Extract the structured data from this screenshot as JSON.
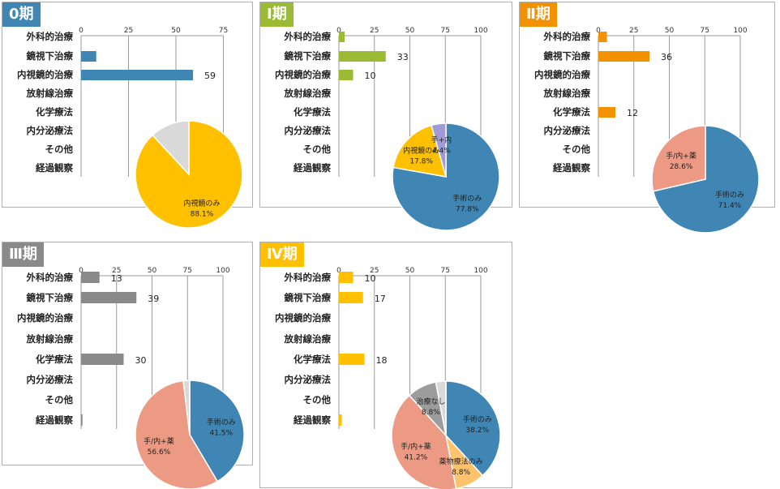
{
  "categories": [
    "外科的治療",
    "鏡視下治療",
    "内視鏡的治療",
    "放射線治療",
    "化学療法",
    "内分泌療法",
    "その他",
    "経過観察"
  ],
  "panels": [
    {
      "title": "0期",
      "color": "#3f86b5",
      "chart_data": {
        "type": "bar",
        "orientation": "horizontal",
        "ticks": [
          0,
          25,
          50,
          75
        ],
        "values": [
          0,
          8,
          59,
          0,
          0,
          0,
          0,
          0
        ],
        "labels": [
          "",
          "",
          "59",
          "",
          "",
          "",
          "",
          ""
        ],
        "pie": [
          {
            "name": "内視鏡のみ",
            "value": 88.1,
            "label": "内視鏡のみ",
            "pct": "88.1%",
            "color": "#ffc000"
          },
          {
            "name": "",
            "value": 11.9,
            "label": "",
            "pct": "",
            "color": "#d9d9d9"
          }
        ]
      }
    },
    {
      "title": "Ⅰ期",
      "color": "#9bbb34",
      "chart_data": {
        "type": "bar",
        "orientation": "horizontal",
        "ticks": [
          0,
          25,
          50,
          75,
          100
        ],
        "values": [
          4,
          33,
          10,
          0,
          0,
          0,
          0,
          0
        ],
        "labels": [
          "",
          "33",
          "10",
          "",
          "",
          "",
          "",
          ""
        ],
        "pie": [
          {
            "name": "手術のみ",
            "value": 77.8,
            "label": "手術のみ",
            "pct": "77.8%",
            "color": "#3f86b5"
          },
          {
            "name": "内視鏡のみ",
            "value": 17.8,
            "label": "内視鏡のみ",
            "pct": "17.8%",
            "color": "#ffc000"
          },
          {
            "name": "手+内",
            "value": 4.4,
            "label": "手+内",
            "pct": "4.4%",
            "color": "#a09ad6"
          }
        ]
      }
    },
    {
      "title": "Ⅱ期",
      "color": "#f39200",
      "chart_data": {
        "type": "bar",
        "orientation": "horizontal",
        "ticks": [
          0,
          25,
          50,
          75,
          100
        ],
        "values": [
          6,
          36,
          0,
          0,
          12,
          0,
          0,
          0
        ],
        "labels": [
          "",
          "36",
          "",
          "",
          "12",
          "",
          "",
          ""
        ],
        "pie": [
          {
            "name": "手術のみ",
            "value": 71.4,
            "label": "手術のみ",
            "pct": "71.4%",
            "color": "#3f86b5"
          },
          {
            "name": "手/内+薬",
            "value": 28.6,
            "label": "手/内+薬",
            "pct": "28.6%",
            "color": "#ec9a84"
          }
        ]
      }
    },
    {
      "title": "Ⅲ期",
      "color": "#8a8a8a",
      "chart_data": {
        "type": "bar",
        "orientation": "horizontal",
        "ticks": [
          0,
          25,
          50,
          75,
          100
        ],
        "values": [
          13,
          39,
          0,
          0,
          30,
          0,
          0,
          1
        ],
        "labels": [
          "13",
          "39",
          "",
          "",
          "30",
          "",
          "",
          ""
        ],
        "pie": [
          {
            "name": "手術のみ",
            "value": 41.5,
            "label": "手術のみ",
            "pct": "41.5%",
            "color": "#3f86b5"
          },
          {
            "name": "手/内+薬",
            "value": 56.6,
            "label": "手/内+薬",
            "pct": "56.6%",
            "color": "#ec9a84"
          },
          {
            "name": "",
            "value": 1.9,
            "label": "",
            "pct": "",
            "color": "#d9d9d9"
          }
        ]
      }
    },
    {
      "title": "Ⅳ期",
      "color": "#ffc000",
      "chart_data": {
        "type": "bar",
        "orientation": "horizontal",
        "ticks": [
          0,
          25,
          50,
          75,
          100
        ],
        "values": [
          10,
          17,
          0,
          0,
          18,
          0,
          0,
          2
        ],
        "labels": [
          "10",
          "17",
          "",
          "",
          "18",
          "",
          "",
          ""
        ],
        "pie": [
          {
            "name": "手術のみ",
            "value": 38.2,
            "label": "手術のみ",
            "pct": "38.2%",
            "color": "#3f86b5"
          },
          {
            "name": "薬物療法のみ",
            "value": 8.8,
            "label": "薬物療法のみ",
            "pct": "8.8%",
            "color": "#ffc36e"
          },
          {
            "name": "手/内+薬",
            "value": 41.2,
            "label": "手/内+薬",
            "pct": "41.2%",
            "color": "#ec9a84"
          },
          {
            "name": "治療なし",
            "value": 8.8,
            "label": "治療なし",
            "pct": "8.8%",
            "color": "#9c9c9c"
          },
          {
            "name": "",
            "value": 3.0,
            "label": "",
            "pct": "",
            "color": "#d9d9d9"
          }
        ]
      }
    }
  ]
}
